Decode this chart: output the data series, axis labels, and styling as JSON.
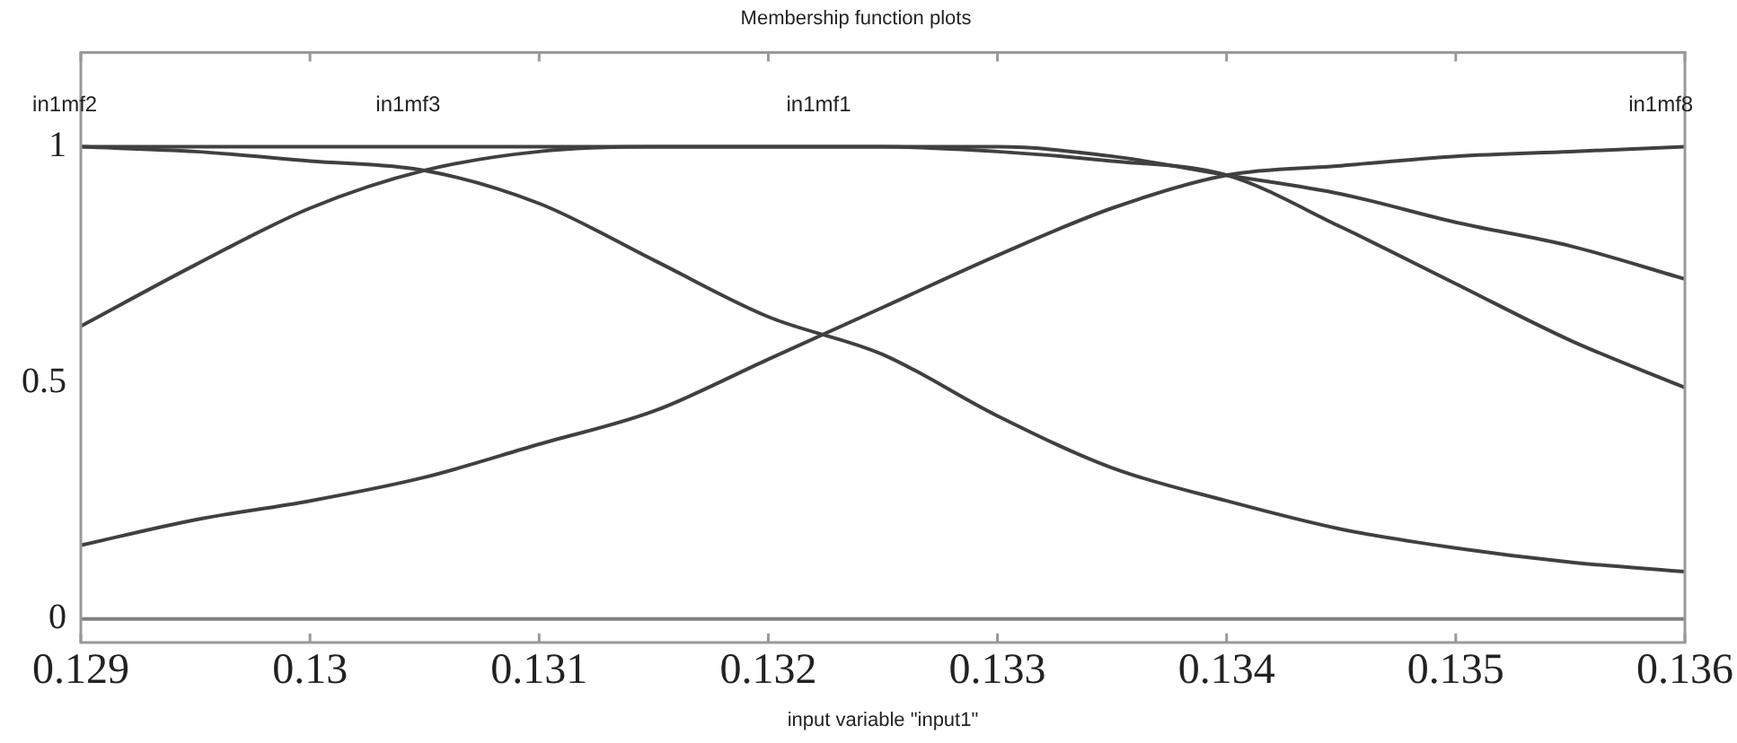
{
  "chart_data": {
    "type": "line",
    "title": "Membership function plots",
    "xlabel": "input variable \"input1\"",
    "x": [
      0.129,
      0.1295,
      0.13,
      0.1305,
      0.131,
      0.1315,
      0.132,
      0.1325,
      0.133,
      0.1335,
      0.134,
      0.1345,
      0.135,
      0.1355,
      0.136
    ],
    "series": [
      {
        "color": "#404040",
        "values": [
          1,
          0.99,
          0.97,
          0.95,
          0.88,
          0.76,
          0.64,
          0.56,
          0.43,
          0.32,
          0.25,
          0.19,
          0.15,
          0.12,
          0.1
        ]
      },
      {
        "color": "#404040",
        "values": [
          0.62,
          0.75,
          0.87,
          0.95,
          0.99,
          1,
          1,
          1,
          0.99,
          0.97,
          0.94,
          0.83,
          0.71,
          0.59,
          0.49
        ]
      },
      {
        "color": "#404040",
        "values": [
          1,
          1,
          1,
          1,
          1,
          1,
          1,
          1,
          1,
          0.98,
          0.94,
          0.9,
          0.84,
          0.79,
          0.72
        ]
      },
      {
        "color": "#404040",
        "values": [
          0.156,
          0.21,
          0.25,
          0.3,
          0.37,
          0.44,
          0.55,
          0.66,
          0.77,
          0.87,
          0.94,
          0.96,
          0.98,
          0.99,
          1
        ]
      },
      {
        "color": "#808080",
        "values": [
          0,
          0,
          0,
          0,
          0,
          0,
          0,
          0,
          0,
          0,
          0,
          0,
          0,
          0,
          0
        ]
      }
    ],
    "annotations": [
      "in1mf2",
      "in1mf3",
      "in1mf1",
      "in1mf8"
    ],
    "xlim": [
      0.129,
      0.136
    ],
    "xticks": [
      0.129,
      0.13,
      0.131,
      0.132,
      0.133,
      0.134,
      0.135,
      0.136
    ],
    "ylim": [
      -0.05,
      1.2
    ],
    "yticks": [
      0,
      0.5,
      1
    ],
    "grid": false,
    "legend": false,
    "marker": "none",
    "line_style": "solid"
  }
}
